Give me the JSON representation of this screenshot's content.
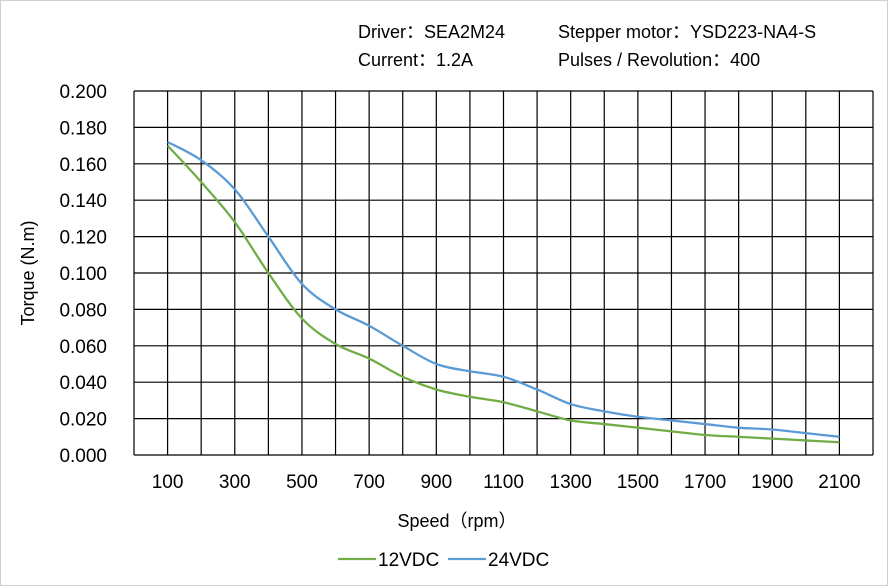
{
  "header": {
    "driver": "Driver：SEA2M24",
    "motor": "Stepper motor：YSD223-NA4-S",
    "current": "Current：1.2A",
    "pulses": "Pulses / Revolution：400"
  },
  "chart_data": {
    "type": "line",
    "title": "",
    "xlabel": "Speed（rpm）",
    "ylabel": "Torque (N.m)",
    "x": [
      100,
      200,
      300,
      400,
      500,
      600,
      700,
      800,
      900,
      1000,
      1100,
      1200,
      1300,
      1400,
      1500,
      1600,
      1700,
      1800,
      1900,
      2000,
      2100
    ],
    "xticks": [
      "100",
      "300",
      "500",
      "700",
      "900",
      "1100",
      "1300",
      "1500",
      "1700",
      "1900",
      "2100"
    ],
    "xlim": [
      0,
      2200
    ],
    "ylim": [
      0,
      0.2
    ],
    "yticks": [
      "0.000",
      "0.020",
      "0.040",
      "0.060",
      "0.080",
      "0.100",
      "0.120",
      "0.140",
      "0.160",
      "0.180",
      "0.200"
    ],
    "grid": true,
    "legend": "bottom",
    "series": [
      {
        "name": "12VDC",
        "color": "#70ad47",
        "values": [
          0.17,
          0.15,
          0.128,
          0.1,
          0.075,
          0.061,
          0.053,
          0.043,
          0.036,
          0.032,
          0.029,
          0.024,
          0.019,
          0.017,
          0.015,
          0.013,
          0.011,
          0.01,
          0.009,
          0.008,
          0.007
        ]
      },
      {
        "name": "24VDC",
        "color": "#5b9bd5",
        "values": [
          0.172,
          0.162,
          0.146,
          0.12,
          0.094,
          0.08,
          0.071,
          0.06,
          0.05,
          0.046,
          0.043,
          0.036,
          0.028,
          0.024,
          0.021,
          0.019,
          0.017,
          0.015,
          0.014,
          0.012,
          0.01
        ]
      }
    ]
  }
}
